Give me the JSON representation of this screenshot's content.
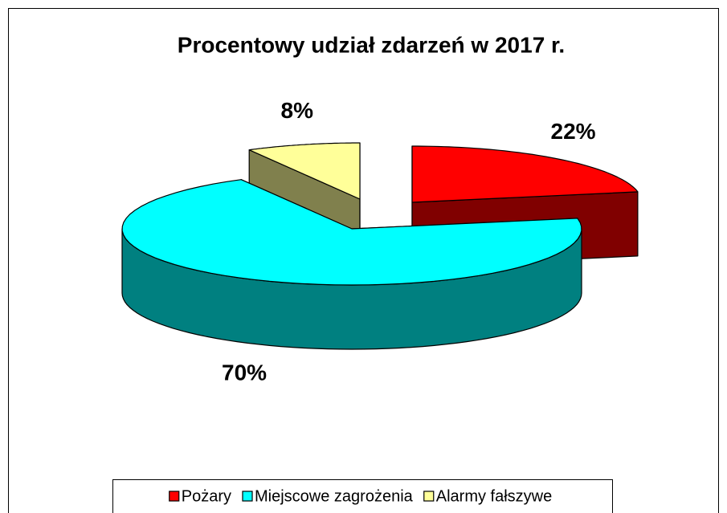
{
  "chart_data": {
    "type": "pie3d",
    "title": "Procentowy udział zdarzeń w 2017 r.",
    "categories": [
      "Pożary",
      "Miejscowe zagrożenia",
      "Alarmy fałszywe"
    ],
    "values": [
      22,
      70,
      8
    ],
    "value_labels": [
      "22%",
      "70%",
      "8%"
    ],
    "colors": [
      "#ff0000",
      "#00ffff",
      "#ffff99"
    ],
    "legend": "bottom"
  }
}
